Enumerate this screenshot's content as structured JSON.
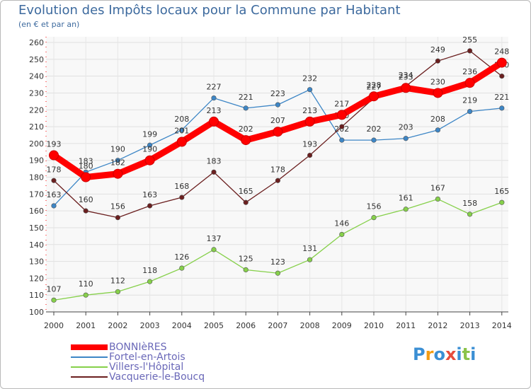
{
  "chart_data": {
    "type": "line",
    "title": "Evolution des Impôts locaux pour la Commune par Habitant",
    "subtitle": "(en € et par an)",
    "categories": [
      "2000",
      "2001",
      "2002",
      "2003",
      "2004",
      "2005",
      "2006",
      "2007",
      "2008",
      "2009",
      "2010",
      "2011",
      "2012",
      "2013",
      "2014"
    ],
    "ylim": [
      100,
      260
    ],
    "yticks": [
      100,
      110,
      120,
      130,
      140,
      150,
      160,
      170,
      180,
      190,
      200,
      210,
      220,
      230,
      240,
      250,
      260
    ],
    "grid": true,
    "series": [
      {
        "name": "BONNIèRES",
        "color": "#ff0000",
        "values": [
          193,
          180,
          182,
          190,
          201,
          213,
          202,
          207,
          213,
          217,
          228,
          233,
          230,
          236,
          248
        ]
      },
      {
        "name": "Fortel-en-Artois",
        "color": "#3d86c6",
        "values": [
          163,
          183,
          190,
          199,
          208,
          227,
          221,
          223,
          232,
          202,
          202,
          203,
          208,
          219,
          221
        ]
      },
      {
        "name": "Villers-l'Hôpital",
        "color": "#86d04a",
        "values": [
          107,
          110,
          112,
          118,
          126,
          137,
          125,
          123,
          131,
          146,
          156,
          161,
          167,
          158,
          165
        ]
      },
      {
        "name": "Vacquerie-le-Boucq",
        "color": "#6b1f1f",
        "values": [
          178,
          160,
          156,
          163,
          168,
          183,
          165,
          178,
          193,
          210,
          227,
          234,
          249,
          255,
          240
        ]
      }
    ]
  },
  "logo": {
    "letters": [
      "P",
      "r",
      "o",
      "x",
      "i",
      "t",
      "i"
    ],
    "colors": [
      "#3b8fd4",
      "#f39c12",
      "#3b8fd4",
      "#e74c3c",
      "#3b8fd4",
      "#8bc34a",
      "#3b8fd4"
    ]
  }
}
